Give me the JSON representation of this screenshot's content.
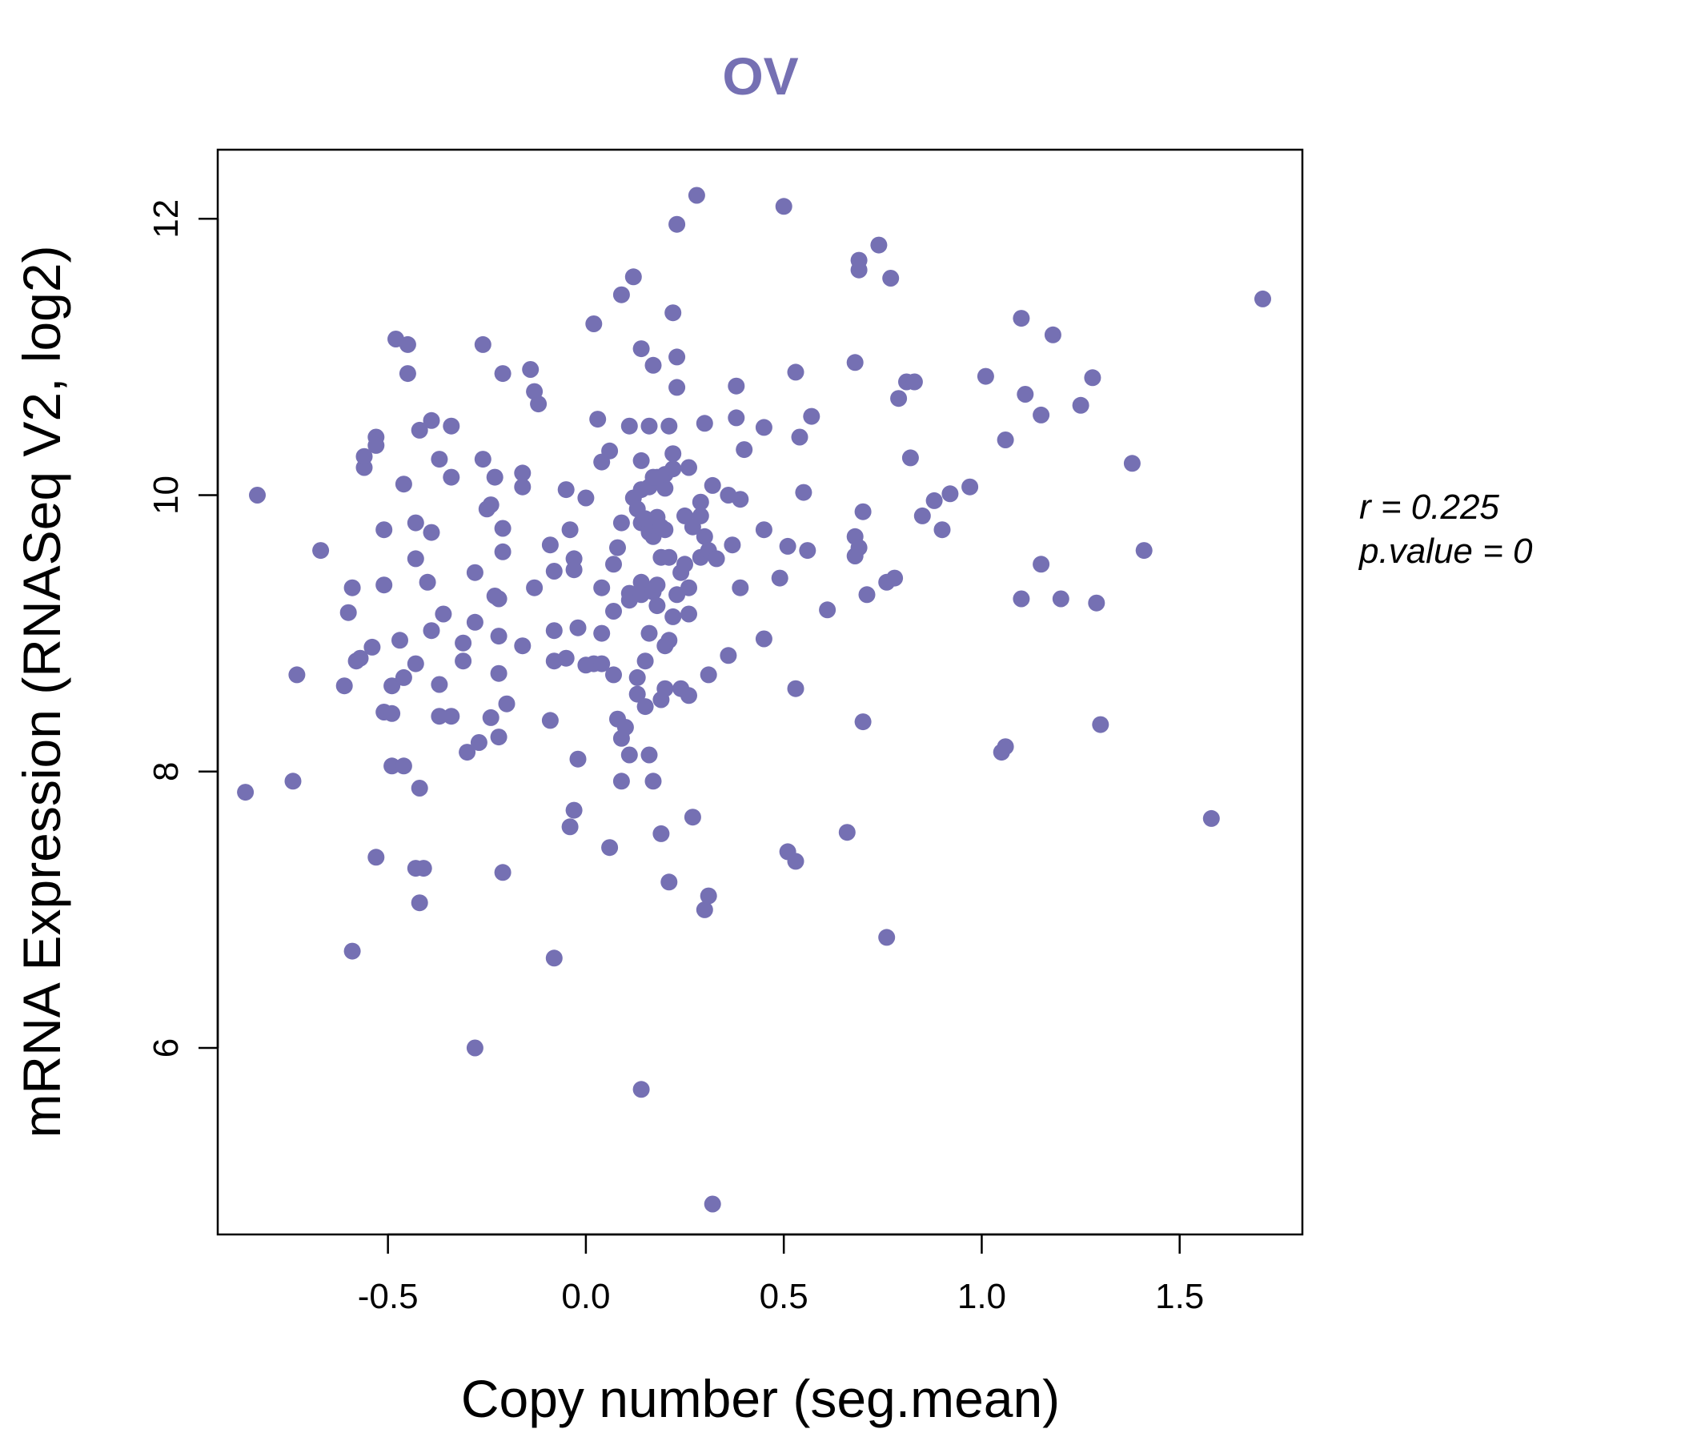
{
  "chart_data": {
    "type": "scatter",
    "title": "OV",
    "xlabel": "Copy number (seg.mean)",
    "ylabel": "mRNA Expression (RNASeq V2, log2)",
    "xlim": [
      -0.93,
      1.81
    ],
    "ylim": [
      4.65,
      12.5
    ],
    "xticks": [
      -0.5,
      0.0,
      0.5,
      1.0,
      1.5
    ],
    "xtick_labels": [
      "-0.5",
      "0.0",
      "0.5",
      "1.0",
      "1.5"
    ],
    "yticks": [
      6,
      8,
      10,
      12
    ],
    "ytick_labels": [
      "6",
      "8",
      "10",
      "12"
    ],
    "point_color": "#7570b3",
    "annotations": {
      "r_text": "r = 0.225",
      "p_text": "p.value = 0"
    },
    "points": [
      [
        -0.83,
        10.0
      ],
      [
        -0.86,
        7.85
      ],
      [
        -0.74,
        7.93
      ],
      [
        -0.73,
        8.7
      ],
      [
        -0.67,
        9.6
      ],
      [
        -0.61,
        8.62
      ],
      [
        -0.59,
        6.7
      ],
      [
        -0.6,
        9.15
      ],
      [
        -0.59,
        9.33
      ],
      [
        -0.58,
        8.8
      ],
      [
        -0.57,
        8.82
      ],
      [
        -0.56,
        10.2
      ],
      [
        -0.56,
        10.28
      ],
      [
        -0.54,
        8.9
      ],
      [
        -0.53,
        10.42
      ],
      [
        -0.53,
        10.36
      ],
      [
        -0.53,
        7.38
      ],
      [
        -0.51,
        9.75
      ],
      [
        -0.51,
        9.35
      ],
      [
        -0.51,
        8.43
      ],
      [
        -0.49,
        8.62
      ],
      [
        -0.49,
        8.42
      ],
      [
        -0.49,
        8.04
      ],
      [
        -0.48,
        11.13
      ],
      [
        -0.47,
        8.95
      ],
      [
        -0.46,
        8.68
      ],
      [
        -0.46,
        8.04
      ],
      [
        -0.46,
        10.08
      ],
      [
        -0.45,
        10.88
      ],
      [
        -0.45,
        11.09
      ],
      [
        -0.43,
        9.54
      ],
      [
        -0.43,
        8.78
      ],
      [
        -0.43,
        9.8
      ],
      [
        -0.43,
        7.3
      ],
      [
        -0.42,
        7.05
      ],
      [
        -0.41,
        7.3
      ],
      [
        -0.42,
        7.88
      ],
      [
        -0.42,
        10.47
      ],
      [
        -0.4,
        9.37
      ],
      [
        -0.39,
        9.73
      ],
      [
        -0.39,
        10.54
      ],
      [
        -0.39,
        9.02
      ],
      [
        -0.37,
        8.63
      ],
      [
        -0.37,
        8.4
      ],
      [
        -0.37,
        10.26
      ],
      [
        -0.36,
        9.14
      ],
      [
        -0.34,
        8.4
      ],
      [
        -0.34,
        10.13
      ],
      [
        -0.34,
        10.5
      ],
      [
        -0.31,
        8.8
      ],
      [
        -0.31,
        8.93
      ],
      [
        -0.3,
        8.14
      ],
      [
        -0.28,
        9.08
      ],
      [
        -0.28,
        6.0
      ],
      [
        -0.28,
        9.44
      ],
      [
        -0.27,
        8.21
      ],
      [
        -0.26,
        10.26
      ],
      [
        -0.26,
        11.09
      ],
      [
        -0.25,
        9.9
      ],
      [
        -0.24,
        9.93
      ],
      [
        -0.24,
        8.39
      ],
      [
        -0.23,
        10.13
      ],
      [
        -0.23,
        9.27
      ],
      [
        -0.22,
        9.25
      ],
      [
        -0.22,
        8.25
      ],
      [
        -0.22,
        8.98
      ],
      [
        -0.22,
        8.71
      ],
      [
        -0.21,
        9.76
      ],
      [
        -0.21,
        9.59
      ],
      [
        -0.21,
        7.27
      ],
      [
        -0.21,
        10.88
      ],
      [
        -0.2,
        8.49
      ],
      [
        -0.16,
        10.16
      ],
      [
        -0.16,
        10.06
      ],
      [
        -0.16,
        8.91
      ],
      [
        -0.14,
        10.91
      ],
      [
        -0.13,
        9.33
      ],
      [
        -0.13,
        10.75
      ],
      [
        -0.12,
        10.66
      ],
      [
        -0.09,
        9.64
      ],
      [
        -0.09,
        8.37
      ],
      [
        -0.08,
        9.45
      ],
      [
        -0.08,
        8.8
      ],
      [
        -0.08,
        9.02
      ],
      [
        -0.08,
        6.65
      ],
      [
        -0.05,
        8.82
      ],
      [
        -0.05,
        10.04
      ],
      [
        -0.04,
        9.75
      ],
      [
        -0.04,
        7.6
      ],
      [
        -0.03,
        7.72
      ],
      [
        -0.03,
        9.54
      ],
      [
        -0.03,
        9.46
      ],
      [
        -0.02,
        8.09
      ],
      [
        -0.02,
        9.04
      ],
      [
        0.0,
        9.98
      ],
      [
        0.0,
        8.77
      ],
      [
        0.02,
        8.78
      ],
      [
        0.02,
        11.24
      ],
      [
        0.03,
        10.55
      ],
      [
        0.04,
        8.78
      ],
      [
        0.04,
        10.24
      ],
      [
        0.04,
        9.33
      ],
      [
        0.04,
        9.0
      ],
      [
        0.06,
        10.32
      ],
      [
        0.06,
        7.45
      ],
      [
        0.07,
        9.16
      ],
      [
        0.07,
        9.5
      ],
      [
        0.07,
        8.7
      ],
      [
        0.08,
        9.62
      ],
      [
        0.08,
        8.38
      ],
      [
        0.09,
        9.8
      ],
      [
        0.09,
        8.24
      ],
      [
        0.09,
        7.93
      ],
      [
        0.09,
        11.45
      ],
      [
        0.1,
        8.32
      ],
      [
        0.11,
        9.24
      ],
      [
        0.11,
        10.5
      ],
      [
        0.11,
        8.12
      ],
      [
        0.11,
        9.29
      ],
      [
        0.12,
        9.98
      ],
      [
        0.12,
        11.58
      ],
      [
        0.13,
        8.56
      ],
      [
        0.13,
        8.68
      ],
      [
        0.13,
        9.9
      ],
      [
        0.14,
        5.7
      ],
      [
        0.14,
        10.04
      ],
      [
        0.14,
        9.8
      ],
      [
        0.14,
        9.37
      ],
      [
        0.14,
        11.06
      ],
      [
        0.14,
        10.25
      ],
      [
        0.14,
        9.28
      ],
      [
        0.15,
        8.47
      ],
      [
        0.15,
        8.8
      ],
      [
        0.15,
        9.83
      ],
      [
        0.16,
        10.06
      ],
      [
        0.16,
        9.73
      ],
      [
        0.16,
        9.0
      ],
      [
        0.16,
        8.12
      ],
      [
        0.16,
        10.5
      ],
      [
        0.17,
        9.7
      ],
      [
        0.17,
        9.78
      ],
      [
        0.17,
        9.3
      ],
      [
        0.17,
        7.93
      ],
      [
        0.17,
        10.13
      ],
      [
        0.17,
        10.94
      ],
      [
        0.18,
        9.35
      ],
      [
        0.18,
        9.2
      ],
      [
        0.18,
        9.84
      ],
      [
        0.18,
        10.13
      ],
      [
        0.19,
        9.77
      ],
      [
        0.19,
        9.55
      ],
      [
        0.19,
        8.52
      ],
      [
        0.19,
        7.55
      ],
      [
        0.2,
        8.91
      ],
      [
        0.2,
        8.6
      ],
      [
        0.2,
        10.05
      ],
      [
        0.2,
        9.75
      ],
      [
        0.2,
        10.15
      ],
      [
        0.21,
        10.5
      ],
      [
        0.21,
        7.2
      ],
      [
        0.21,
        8.95
      ],
      [
        0.21,
        9.55
      ],
      [
        0.22,
        10.3
      ],
      [
        0.22,
        10.19
      ],
      [
        0.22,
        9.12
      ],
      [
        0.22,
        11.32
      ],
      [
        0.23,
        10.78
      ],
      [
        0.23,
        9.28
      ],
      [
        0.23,
        11.0
      ],
      [
        0.23,
        11.96
      ],
      [
        0.24,
        9.44
      ],
      [
        0.24,
        8.6
      ],
      [
        0.25,
        9.5
      ],
      [
        0.25,
        9.85
      ],
      [
        0.26,
        9.14
      ],
      [
        0.26,
        9.33
      ],
      [
        0.26,
        8.55
      ],
      [
        0.26,
        10.2
      ],
      [
        0.27,
        9.77
      ],
      [
        0.27,
        7.67
      ],
      [
        0.28,
        12.17
      ],
      [
        0.29,
        9.95
      ],
      [
        0.29,
        9.85
      ],
      [
        0.29,
        9.55
      ],
      [
        0.3,
        9.7
      ],
      [
        0.3,
        7.0
      ],
      [
        0.3,
        10.52
      ],
      [
        0.31,
        9.6
      ],
      [
        0.31,
        7.1
      ],
      [
        0.31,
        8.7
      ],
      [
        0.32,
        10.07
      ],
      [
        0.32,
        4.87
      ],
      [
        0.33,
        9.54
      ],
      [
        0.36,
        8.84
      ],
      [
        0.36,
        10.0
      ],
      [
        0.37,
        9.64
      ],
      [
        0.38,
        10.56
      ],
      [
        0.38,
        10.79
      ],
      [
        0.39,
        9.97
      ],
      [
        0.39,
        9.33
      ],
      [
        0.4,
        10.33
      ],
      [
        0.45,
        8.96
      ],
      [
        0.45,
        9.75
      ],
      [
        0.45,
        10.49
      ],
      [
        0.49,
        9.4
      ],
      [
        0.5,
        12.09
      ],
      [
        0.51,
        7.42
      ],
      [
        0.51,
        9.63
      ],
      [
        0.53,
        7.35
      ],
      [
        0.53,
        8.6
      ],
      [
        0.53,
        10.89
      ],
      [
        0.54,
        10.42
      ],
      [
        0.55,
        10.02
      ],
      [
        0.56,
        9.6
      ],
      [
        0.57,
        10.57
      ],
      [
        0.61,
        9.17
      ],
      [
        0.66,
        7.56
      ],
      [
        0.68,
        9.7
      ],
      [
        0.68,
        9.56
      ],
      [
        0.68,
        10.96
      ],
      [
        0.69,
        9.62
      ],
      [
        0.69,
        11.7
      ],
      [
        0.69,
        11.63
      ],
      [
        0.7,
        9.88
      ],
      [
        0.7,
        8.36
      ],
      [
        0.71,
        9.28
      ],
      [
        0.74,
        11.81
      ],
      [
        0.76,
        6.8
      ],
      [
        0.76,
        9.37
      ],
      [
        0.77,
        11.57
      ],
      [
        0.78,
        9.4
      ],
      [
        0.79,
        10.7
      ],
      [
        0.81,
        10.82
      ],
      [
        0.82,
        10.27
      ],
      [
        0.83,
        10.82
      ],
      [
        0.85,
        9.85
      ],
      [
        0.88,
        9.96
      ],
      [
        0.9,
        9.75
      ],
      [
        0.92,
        10.01
      ],
      [
        0.97,
        10.06
      ],
      [
        1.01,
        10.86
      ],
      [
        1.05,
        8.14
      ],
      [
        1.06,
        8.18
      ],
      [
        1.06,
        10.4
      ],
      [
        1.1,
        11.28
      ],
      [
        1.1,
        9.25
      ],
      [
        1.11,
        10.73
      ],
      [
        1.15,
        9.5
      ],
      [
        1.15,
        10.58
      ],
      [
        1.18,
        11.16
      ],
      [
        1.2,
        9.25
      ],
      [
        1.25,
        10.65
      ],
      [
        1.28,
        10.85
      ],
      [
        1.29,
        9.22
      ],
      [
        1.3,
        8.34
      ],
      [
        1.38,
        10.23
      ],
      [
        1.41,
        9.6
      ],
      [
        1.58,
        7.66
      ],
      [
        1.71,
        11.42
      ]
    ]
  }
}
